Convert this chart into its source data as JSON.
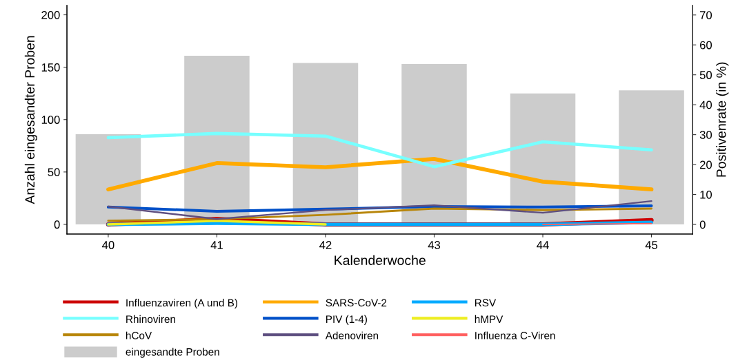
{
  "chart_data": {
    "type": "line",
    "xlabel": "Kalenderwoche",
    "ylabel": "Anzahl eingesandter Proben",
    "y2label": "Positivenrate (in %)",
    "x": [
      40,
      41,
      42,
      43,
      44,
      45
    ],
    "xlim": [
      39.62,
      45.38
    ],
    "xticks": [
      40,
      41,
      42,
      43,
      44,
      45
    ],
    "ylim": [
      -9.2,
      209
    ],
    "yticks": [
      0,
      50,
      100,
      150,
      200
    ],
    "y2lim": [
      -3.2,
      73.2
    ],
    "y2ticks": [
      0,
      10,
      20,
      30,
      40,
      50,
      60,
      70
    ],
    "grid": false,
    "legend": "bottom",
    "line_style": "solid",
    "marker": "none",
    "series": [
      {
        "name": "Influenzaviren (A und B)",
        "color": "#cc0000",
        "axis": "y2",
        "values": [
          0,
          1.8,
          0,
          0,
          0,
          1.4
        ]
      },
      {
        "name": "SARS-CoV-2",
        "color": "#ffaa00",
        "axis": "y2",
        "values": [
          11.7,
          20.5,
          19.1,
          21.9,
          14.3,
          11.7
        ]
      },
      {
        "name": "RSV",
        "color": "#00aaff",
        "axis": "y2",
        "values": [
          0,
          0.4,
          0,
          0,
          0,
          0.7
        ]
      },
      {
        "name": "Rhinoviren",
        "color": "#77ffff",
        "axis": "y2",
        "values": [
          29.0,
          30.4,
          29.5,
          19.3,
          27.6,
          24.9
        ]
      },
      {
        "name": "PIV (1-4)",
        "color": "#0050c8",
        "axis": "y2",
        "values": [
          5.8,
          4.4,
          5.1,
          6.0,
          5.8,
          6.2
        ]
      },
      {
        "name": "hMPV",
        "color": "#eeee22",
        "axis": "y2",
        "values": [
          0,
          1.2,
          0,
          null,
          null,
          null
        ]
      },
      {
        "name": "hCoV",
        "color": "#b8860b",
        "axis": "y2",
        "values": [
          1.2,
          1.8,
          3.2,
          5.3,
          4.8,
          5.3
        ]
      },
      {
        "name": "Adenoviren",
        "color": "#5e4f80",
        "axis": "y2",
        "values": [
          6.0,
          1.8,
          4.8,
          6.4,
          3.9,
          7.8
        ]
      },
      {
        "name": "Influenza C-Viren",
        "color": "#ff6060",
        "axis": "y2",
        "values": [
          null,
          null,
          null,
          null,
          0,
          0.3
        ]
      },
      {
        "name": "eingesandte Proben",
        "color": "#cccccc",
        "type": "bar",
        "axis": "y",
        "values": [
          86,
          161,
          154,
          153,
          125,
          128
        ]
      }
    ]
  }
}
